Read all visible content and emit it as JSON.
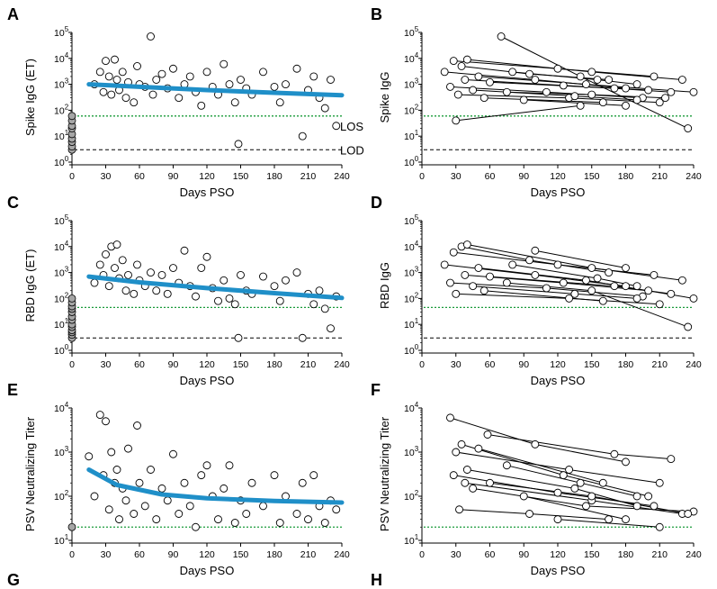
{
  "x_axis_label": "Days PSO",
  "x_ticks": [
    0,
    30,
    60,
    90,
    120,
    150,
    180,
    210,
    240
  ],
  "colors": {
    "fit": "#1f8fc8",
    "los": "#1a9b3a",
    "lod": "#000000",
    "baseline_fill": "#a6a6a6",
    "marker_edge": "#000000"
  },
  "panels": [
    {
      "id": "A",
      "letter": "A",
      "ylabel": "Spike IgG (ET)",
      "ytype": "pow10",
      "ymin_exp": 0,
      "ymax_exp": 5,
      "los": 60,
      "lod": 3,
      "los_label": "LOS",
      "lod_label": "LOD",
      "fit": [
        [
          15,
          1000
        ],
        [
          60,
          800
        ],
        [
          120,
          600
        ],
        [
          180,
          470
        ],
        [
          240,
          380
        ]
      ],
      "baseline": [
        3,
        4,
        6,
        8,
        12,
        20,
        25,
        40,
        60
      ],
      "kind": "scatter"
    },
    {
      "id": "B",
      "letter": "B",
      "ylabel": "Spike IgG",
      "ytype": "pow10",
      "ymin_exp": 0,
      "ymax_exp": 5,
      "los": 60,
      "lod": 3,
      "kind": "lines"
    },
    {
      "id": "C",
      "letter": "C",
      "ylabel": "RBD IgG (ET)",
      "ytype": "pow10",
      "ymin_exp": 0,
      "ymax_exp": 5,
      "los": 45,
      "lod": 3,
      "fit": [
        [
          15,
          700
        ],
        [
          60,
          420
        ],
        [
          120,
          250
        ],
        [
          180,
          160
        ],
        [
          240,
          105
        ]
      ],
      "baseline": [
        3,
        4,
        5,
        6,
        8,
        10,
        15,
        20,
        30,
        40,
        50,
        70,
        100
      ],
      "kind": "scatter"
    },
    {
      "id": "D",
      "letter": "D",
      "ylabel": "RBD IgG",
      "ytype": "pow10",
      "ymin_exp": 0,
      "ymax_exp": 5,
      "los": 45,
      "lod": 3,
      "kind": "lines"
    },
    {
      "id": "E",
      "letter": "E",
      "ylabel": "PSV Neutralizing Titer",
      "ytype": "pow10",
      "ymin_exp": 1,
      "ymax_exp": 4,
      "los": 20,
      "fit": [
        [
          15,
          400
        ],
        [
          40,
          180
        ],
        [
          80,
          110
        ],
        [
          120,
          90
        ],
        [
          180,
          78
        ],
        [
          240,
          72
        ]
      ],
      "baseline": [
        20
      ],
      "kind": "scatter"
    },
    {
      "id": "F",
      "letter": "F",
      "ylabel": "PSV Neutralizing Titer",
      "ytype": "pow10",
      "ymin_exp": 1,
      "ymax_exp": 4,
      "los": 20,
      "kind": "lines"
    }
  ],
  "bottom_letters": [
    "G",
    "H"
  ],
  "chart_data": [
    {
      "type": "scatter",
      "panel": "A",
      "xlabel": "Days PSO",
      "ylabel": "Spike IgG (ET)",
      "ylim": [
        1,
        100000
      ],
      "yscale": "log",
      "series": [
        {
          "x": [
            20,
            25,
            28,
            30,
            33,
            35,
            38,
            40,
            42,
            45,
            48,
            50,
            55,
            58,
            60,
            65,
            70,
            72,
            75,
            80,
            85,
            90,
            95,
            100,
            105,
            110,
            115,
            120,
            125,
            130,
            135,
            140,
            145,
            148,
            150,
            155,
            160,
            170,
            180,
            185,
            190,
            200,
            205,
            210,
            215,
            220,
            225,
            230,
            235
          ],
          "y": [
            1000,
            3000,
            500,
            8000,
            2000,
            400,
            9000,
            1500,
            600,
            3000,
            300,
            1200,
            200,
            5000,
            1000,
            800,
            70000,
            400,
            1500,
            2500,
            700,
            4000,
            300,
            1000,
            2000,
            500,
            150,
            3000,
            800,
            400,
            6000,
            1000,
            200,
            5,
            1500,
            700,
            400,
            3000,
            800,
            200,
            1000,
            4000,
            10,
            600,
            2000,
            300,
            120,
            1500,
            25
          ]
        }
      ]
    },
    {
      "type": "line",
      "panel": "B",
      "xlabel": "Days PSO",
      "ylabel": "Spike IgG",
      "ylim": [
        1,
        100000
      ],
      "yscale": "log",
      "series": [
        {
          "x": [
            20,
            100,
            180
          ],
          "y": [
            3000,
            1500,
            700
          ]
        },
        {
          "x": [
            25,
            110,
            195
          ],
          "y": [
            800,
            500,
            300
          ]
        },
        {
          "x": [
            28,
            120,
            205
          ],
          "y": [
            8000,
            4000,
            2000
          ]
        },
        {
          "x": [
            30,
            140
          ],
          "y": [
            40,
            150
          ]
        },
        {
          "x": [
            32,
            130,
            210
          ],
          "y": [
            400,
            300,
            200
          ]
        },
        {
          "x": [
            35,
            95,
            165
          ],
          "y": [
            5000,
            2500,
            1500
          ]
        },
        {
          "x": [
            38,
            125,
            200
          ],
          "y": [
            1500,
            900,
            600
          ]
        },
        {
          "x": [
            40,
            150,
            230
          ],
          "y": [
            9000,
            3000,
            1500
          ]
        },
        {
          "x": [
            45,
            135,
            190
          ],
          "y": [
            600,
            350,
            250
          ]
        },
        {
          "x": [
            50,
            145,
            240
          ],
          "y": [
            2000,
            1000,
            500
          ]
        },
        {
          "x": [
            55,
            160
          ],
          "y": [
            300,
            200
          ]
        },
        {
          "x": [
            60,
            170,
            220
          ],
          "y": [
            1200,
            700,
            500
          ]
        },
        {
          "x": [
            70,
            140,
            235
          ],
          "y": [
            70000,
            2000,
            20
          ]
        },
        {
          "x": [
            75,
            150,
            215
          ],
          "y": [
            500,
            400,
            300
          ]
        },
        {
          "x": [
            80,
            155,
            190
          ],
          "y": [
            3000,
            1500,
            1000
          ]
        },
        {
          "x": [
            90,
            180
          ],
          "y": [
            250,
            150
          ]
        }
      ]
    },
    {
      "type": "scatter",
      "panel": "C",
      "xlabel": "Days PSO",
      "ylabel": "RBD IgG (ET)",
      "ylim": [
        1,
        100000
      ],
      "yscale": "log",
      "series": [
        {
          "x": [
            20,
            25,
            28,
            30,
            33,
            35,
            38,
            40,
            42,
            45,
            48,
            50,
            55,
            58,
            60,
            65,
            70,
            75,
            80,
            85,
            90,
            95,
            100,
            105,
            110,
            115,
            120,
            125,
            130,
            135,
            140,
            145,
            148,
            150,
            155,
            160,
            170,
            180,
            185,
            190,
            200,
            205,
            210,
            215,
            220,
            225,
            230,
            235
          ],
          "y": [
            400,
            2000,
            800,
            5000,
            300,
            10000,
            1500,
            12000,
            600,
            3000,
            200,
            800,
            150,
            2000,
            500,
            300,
            1000,
            200,
            800,
            150,
            1500,
            400,
            7000,
            300,
            120,
            1500,
            4000,
            250,
            80,
            500,
            100,
            60,
            3,
            800,
            200,
            150,
            700,
            300,
            80,
            500,
            1000,
            3,
            150,
            60,
            200,
            40,
            7,
            120
          ]
        }
      ]
    },
    {
      "type": "line",
      "panel": "D",
      "xlabel": "Days PSO",
      "ylabel": "RBD IgG",
      "ylim": [
        1,
        100000
      ],
      "yscale": "log",
      "series": [
        {
          "x": [
            20,
            100,
            180
          ],
          "y": [
            2000,
            800,
            300
          ]
        },
        {
          "x": [
            25,
            110,
            195
          ],
          "y": [
            400,
            250,
            120
          ]
        },
        {
          "x": [
            28,
            120,
            205
          ],
          "y": [
            6000,
            2000,
            800
          ]
        },
        {
          "x": [
            30,
            130,
            210
          ],
          "y": [
            150,
            100,
            60
          ]
        },
        {
          "x": [
            35,
            95,
            165
          ],
          "y": [
            10000,
            3000,
            1000
          ]
        },
        {
          "x": [
            38,
            125,
            200
          ],
          "y": [
            800,
            400,
            200
          ]
        },
        {
          "x": [
            40,
            150,
            230
          ],
          "y": [
            12000,
            1500,
            500
          ]
        },
        {
          "x": [
            45,
            135,
            190
          ],
          "y": [
            300,
            150,
            100
          ]
        },
        {
          "x": [
            50,
            145,
            240
          ],
          "y": [
            1500,
            500,
            100
          ]
        },
        {
          "x": [
            55,
            160
          ],
          "y": [
            200,
            80
          ]
        },
        {
          "x": [
            60,
            170,
            220
          ],
          "y": [
            700,
            300,
            150
          ]
        },
        {
          "x": [
            75,
            150,
            235
          ],
          "y": [
            400,
            200,
            8
          ]
        },
        {
          "x": [
            80,
            155,
            190
          ],
          "y": [
            2000,
            600,
            300
          ]
        },
        {
          "x": [
            100,
            180
          ],
          "y": [
            7000,
            1500
          ]
        }
      ]
    },
    {
      "type": "scatter",
      "panel": "E",
      "xlabel": "Days PSO",
      "ylabel": "PSV Neutralizing Titer",
      "ylim": [
        10,
        10000
      ],
      "yscale": "log",
      "series": [
        {
          "x": [
            15,
            20,
            25,
            28,
            30,
            33,
            35,
            38,
            40,
            42,
            45,
            48,
            50,
            55,
            58,
            60,
            65,
            70,
            75,
            80,
            85,
            90,
            95,
            100,
            105,
            110,
            115,
            120,
            125,
            130,
            135,
            140,
            145,
            150,
            155,
            160,
            170,
            180,
            185,
            190,
            200,
            205,
            210,
            215,
            220,
            225,
            230,
            235
          ],
          "y": [
            800,
            100,
            7000,
            300,
            5000,
            50,
            1000,
            200,
            400,
            30,
            150,
            80,
            1200,
            40,
            4000,
            200,
            60,
            400,
            30,
            150,
            80,
            900,
            40,
            200,
            60,
            20,
            300,
            500,
            100,
            30,
            150,
            500,
            25,
            80,
            40,
            200,
            60,
            300,
            25,
            100,
            40,
            200,
            30,
            300,
            60,
            25,
            80,
            50
          ]
        }
      ]
    },
    {
      "type": "line",
      "panel": "F",
      "xlabel": "Days PSO",
      "ylabel": "PSV Neutralizing Titer",
      "ylim": [
        10,
        10000
      ],
      "yscale": "log",
      "series": [
        {
          "x": [
            25,
            100,
            180
          ],
          "y": [
            6000,
            1500,
            600
          ]
        },
        {
          "x": [
            28,
            120,
            205
          ],
          "y": [
            300,
            120,
            60
          ]
        },
        {
          "x": [
            30,
            130,
            210
          ],
          "y": [
            1000,
            400,
            200
          ]
        },
        {
          "x": [
            33,
            95,
            165
          ],
          "y": [
            50,
            40,
            30
          ]
        },
        {
          "x": [
            35,
            125,
            200
          ],
          "y": [
            1500,
            300,
            100
          ]
        },
        {
          "x": [
            38,
            150,
            230
          ],
          "y": [
            200,
            80,
            40
          ]
        },
        {
          "x": [
            40,
            135,
            190
          ],
          "y": [
            400,
            150,
            60
          ]
        },
        {
          "x": [
            45,
            145,
            240
          ],
          "y": [
            150,
            60,
            45
          ]
        },
        {
          "x": [
            50,
            160
          ],
          "y": [
            1200,
            200
          ]
        },
        {
          "x": [
            58,
            170,
            220
          ],
          "y": [
            2500,
            900,
            700
          ]
        },
        {
          "x": [
            60,
            150,
            235
          ],
          "y": [
            200,
            100,
            40
          ]
        },
        {
          "x": [
            75,
            140,
            190
          ],
          "y": [
            500,
            200,
            100
          ]
        },
        {
          "x": [
            90,
            180
          ],
          "y": [
            100,
            30
          ]
        },
        {
          "x": [
            120,
            210
          ],
          "y": [
            30,
            20
          ]
        }
      ]
    }
  ]
}
